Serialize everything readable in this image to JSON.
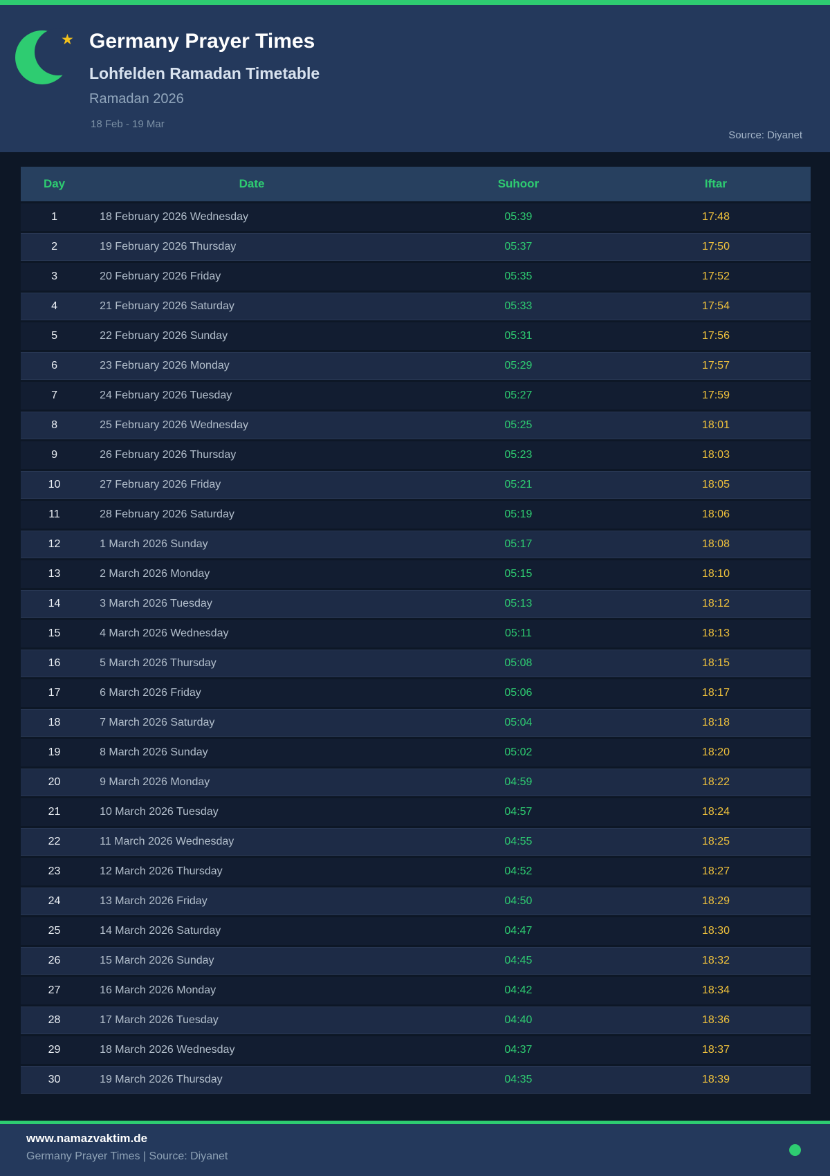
{
  "header": {
    "title": "Germany Prayer Times",
    "subtitle": "Lohfelden Ramadan Timetable",
    "season": "Ramadan 2026",
    "date_range": "18 Feb - 19 Mar",
    "source": "Source: Diyanet",
    "icons": {
      "moon": "crescent-moon",
      "star": "star",
      "star_glyph": "★"
    }
  },
  "colors": {
    "accent_green": "#2ecc71",
    "iftar_amber": "#f0c23c",
    "header_bg": "#24395c",
    "page_bg": "#0d1726",
    "row_dark": "#121d31",
    "row_light": "#1d2b46",
    "table_header_bg": "#27405f",
    "star_gold": "#f2c11c"
  },
  "table": {
    "columns": [
      "Day",
      "Date",
      "Suhoor",
      "Iftar"
    ],
    "rows": [
      [
        "1",
        "18 February 2026 Wednesday",
        "05:39",
        "17:48"
      ],
      [
        "2",
        "19 February 2026 Thursday",
        "05:37",
        "17:50"
      ],
      [
        "3",
        "20 February 2026 Friday",
        "05:35",
        "17:52"
      ],
      [
        "4",
        "21 February 2026 Saturday",
        "05:33",
        "17:54"
      ],
      [
        "5",
        "22 February 2026 Sunday",
        "05:31",
        "17:56"
      ],
      [
        "6",
        "23 February 2026 Monday",
        "05:29",
        "17:57"
      ],
      [
        "7",
        "24 February 2026 Tuesday",
        "05:27",
        "17:59"
      ],
      [
        "8",
        "25 February 2026 Wednesday",
        "05:25",
        "18:01"
      ],
      [
        "9",
        "26 February 2026 Thursday",
        "05:23",
        "18:03"
      ],
      [
        "10",
        "27 February 2026 Friday",
        "05:21",
        "18:05"
      ],
      [
        "11",
        "28 February 2026 Saturday",
        "05:19",
        "18:06"
      ],
      [
        "12",
        "1 March 2026 Sunday",
        "05:17",
        "18:08"
      ],
      [
        "13",
        "2 March 2026 Monday",
        "05:15",
        "18:10"
      ],
      [
        "14",
        "3 March 2026 Tuesday",
        "05:13",
        "18:12"
      ],
      [
        "15",
        "4 March 2026 Wednesday",
        "05:11",
        "18:13"
      ],
      [
        "16",
        "5 March 2026 Thursday",
        "05:08",
        "18:15"
      ],
      [
        "17",
        "6 March 2026 Friday",
        "05:06",
        "18:17"
      ],
      [
        "18",
        "7 March 2026 Saturday",
        "05:04",
        "18:18"
      ],
      [
        "19",
        "8 March 2026 Sunday",
        "05:02",
        "18:20"
      ],
      [
        "20",
        "9 March 2026 Monday",
        "04:59",
        "18:22"
      ],
      [
        "21",
        "10 March 2026 Tuesday",
        "04:57",
        "18:24"
      ],
      [
        "22",
        "11 March 2026 Wednesday",
        "04:55",
        "18:25"
      ],
      [
        "23",
        "12 March 2026 Thursday",
        "04:52",
        "18:27"
      ],
      [
        "24",
        "13 March 2026 Friday",
        "04:50",
        "18:29"
      ],
      [
        "25",
        "14 March 2026 Saturday",
        "04:47",
        "18:30"
      ],
      [
        "26",
        "15 March 2026 Sunday",
        "04:45",
        "18:32"
      ],
      [
        "27",
        "16 March 2026 Monday",
        "04:42",
        "18:34"
      ],
      [
        "28",
        "17 March 2026 Tuesday",
        "04:40",
        "18:36"
      ],
      [
        "29",
        "18 March 2026 Wednesday",
        "04:37",
        "18:37"
      ],
      [
        "30",
        "19 March 2026 Thursday",
        "04:35",
        "18:39"
      ]
    ]
  },
  "footer": {
    "website": "www.namazvaktim.de",
    "tagline": "Germany Prayer Times | Source: Diyanet"
  }
}
